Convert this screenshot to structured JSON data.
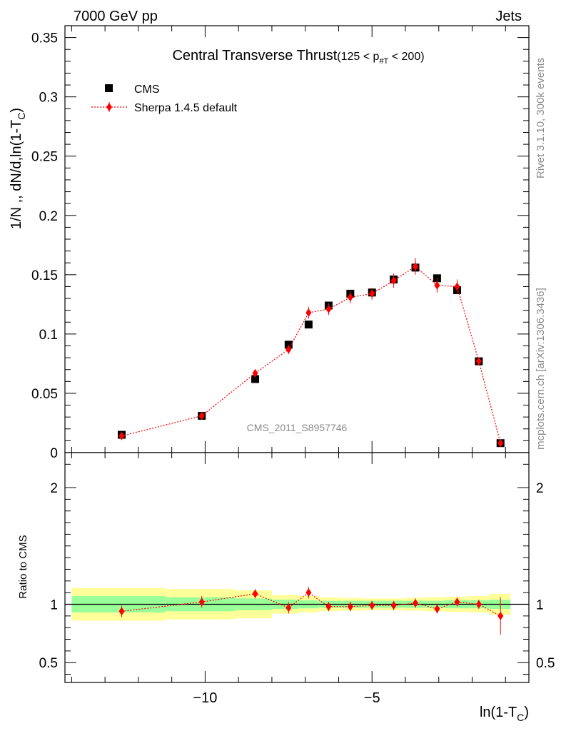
{
  "header": {
    "left": "7000 GeV pp",
    "right": "Jets"
  },
  "side_labels": {
    "rivet": "Rivet 3.1.10,  300k events",
    "mcplots": "mcplots.cern.ch [arXiv:1306.3436]"
  },
  "chart_data": [
    {
      "type": "scatter",
      "title": "Central Transverse Thrust",
      "title_extra": "(125 < p",
      "title_sub": "#T",
      "title_extra2": " < 200)",
      "ylabel": "1/N ,, dN/d,ln(1-T",
      "ylabel_sub": "C",
      "ylabel_end": ")",
      "analysis_label": "CMS_2011_S8957746",
      "xlim": [
        -14.2,
        -0.3
      ],
      "ylim": [
        0,
        0.36
      ],
      "y_ticks": [
        "0",
        "0.05",
        "0.1",
        "0.15",
        "0.2",
        "0.25",
        "0.3",
        "0.35"
      ],
      "legend_position": "top-left",
      "series": [
        {
          "name": "CMS",
          "marker": "square",
          "color": "#000000",
          "x": [
            -12.5,
            -10.1,
            -8.5,
            -7.5,
            -6.9,
            -6.3,
            -5.65,
            -5.0,
            -4.35,
            -3.7,
            -3.05,
            -2.45,
            -1.8,
            -1.15
          ],
          "y": [
            0.015,
            0.031,
            0.062,
            0.091,
            0.108,
            0.124,
            0.134,
            0.135,
            0.146,
            0.156,
            0.147,
            0.137,
            0.077,
            0.008
          ]
        },
        {
          "name": "Sherpa 1.4.5 default",
          "marker": "diamond",
          "color": "#ff0000",
          "line": "dotted",
          "x": [
            -12.5,
            -10.1,
            -8.5,
            -7.5,
            -6.9,
            -6.3,
            -5.65,
            -5.0,
            -4.35,
            -3.7,
            -3.05,
            -2.45,
            -1.8,
            -1.15
          ],
          "y": [
            0.014,
            0.031,
            0.067,
            0.087,
            0.118,
            0.121,
            0.131,
            0.134,
            0.145,
            0.157,
            0.141,
            0.14,
            0.077,
            0.008
          ],
          "yerr": [
            0.002,
            0.002,
            0.003,
            0.004,
            0.005,
            0.005,
            0.005,
            0.005,
            0.006,
            0.007,
            0.006,
            0.006,
            0.003,
            0.002
          ]
        }
      ]
    },
    {
      "type": "scatter",
      "ylabel": "Ratio to CMS",
      "xlabel": "ln(1-T",
      "xlabel_sub": "C",
      "xlabel_end": ")",
      "xlim": [
        -14.2,
        -0.3
      ],
      "ylim": [
        0.33,
        2.3
      ],
      "x_ticks": [
        {
          "v": -10,
          "label": "−10"
        },
        {
          "v": -5,
          "label": "−5"
        }
      ],
      "y_ticks": [
        "0.5",
        "1",
        "2"
      ],
      "reference_line": 1,
      "bands": {
        "x_edges": [
          -14.0,
          -11.2,
          -9.1,
          -8.0,
          -7.2,
          -6.6,
          -6.0,
          -5.3,
          -4.7,
          -4.0,
          -3.4,
          -2.8,
          -2.1,
          -1.5,
          -0.85
        ],
        "green_halfwidth": [
          0.07,
          0.06,
          0.05,
          0.04,
          0.035,
          0.03,
          0.03,
          0.03,
          0.03,
          0.03,
          0.03,
          0.035,
          0.035,
          0.04
        ],
        "yellow_halfwidth": [
          0.14,
          0.13,
          0.12,
          0.08,
          0.07,
          0.06,
          0.055,
          0.05,
          0.05,
          0.055,
          0.06,
          0.065,
          0.07,
          0.09
        ],
        "green_color": "#99ff99",
        "yellow_color": "#ffff99"
      },
      "series": [
        {
          "name": "Sherpa 1.4.5 default",
          "marker": "diamond",
          "color": "#ff0000",
          "line": "dotted",
          "x": [
            -12.5,
            -10.1,
            -8.5,
            -7.5,
            -6.9,
            -6.3,
            -5.65,
            -5.0,
            -4.35,
            -3.7,
            -3.05,
            -2.45,
            -1.8,
            -1.15
          ],
          "y": [
            0.94,
            1.02,
            1.09,
            0.97,
            1.1,
            0.98,
            0.98,
            0.99,
            0.99,
            1.01,
            0.96,
            1.02,
            1.0,
            0.9
          ],
          "yerr": [
            0.05,
            0.05,
            0.04,
            0.05,
            0.05,
            0.04,
            0.04,
            0.04,
            0.04,
            0.04,
            0.04,
            0.04,
            0.04,
            0.16
          ]
        }
      ]
    }
  ]
}
